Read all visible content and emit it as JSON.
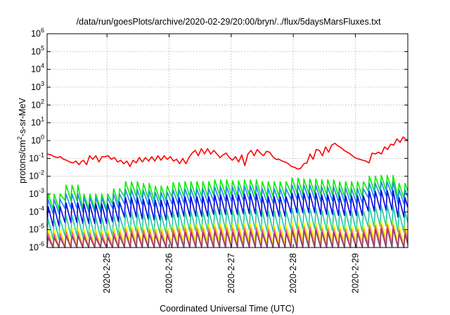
{
  "chart_data": {
    "type": "line",
    "title": "/data/run/goesPlots/archive/2020-02-29/20:00/bryn/../flux/5daysMarsFluxes.txt",
    "xlabel": "Coordinated Universal Time (UTC)",
    "ylabel": {
      "pre": "protons/cm",
      "sup": "2",
      "post": "-s-sr-MeV"
    },
    "yscale": "log",
    "ylim_exp": [
      -6,
      6
    ],
    "y_ticks": [
      {
        "base": "10",
        "exp": "-6",
        "v": -6
      },
      {
        "base": "10",
        "exp": "-5",
        "v": -5
      },
      {
        "base": "10",
        "exp": "-4",
        "v": -4
      },
      {
        "base": "10",
        "exp": "-3",
        "v": -3
      },
      {
        "base": "10",
        "exp": "-2",
        "v": -2
      },
      {
        "base": "10",
        "exp": "-1",
        "v": -1
      },
      {
        "base": "10",
        "exp": "0",
        "v": 0
      },
      {
        "base": "10",
        "exp": "1",
        "v": 1
      },
      {
        "base": "10",
        "exp": "2",
        "v": 2
      },
      {
        "base": "10",
        "exp": "3",
        "v": 3
      },
      {
        "base": "10",
        "exp": "4",
        "v": 4
      },
      {
        "base": "10",
        "exp": "5",
        "v": 5
      },
      {
        "base": "10",
        "exp": "6",
        "v": 6
      }
    ],
    "xlim_days": [
      -0.965,
      4.845
    ],
    "x_ticks": [
      {
        "label": "2020-2-25",
        "day": 0
      },
      {
        "label": "2020-2-26",
        "day": 1
      },
      {
        "label": "2020-2-27",
        "day": 2
      },
      {
        "label": "2020-2-28",
        "day": 3
      },
      {
        "label": "2020-2-29",
        "day": 4
      }
    ],
    "grid": true,
    "series": [
      {
        "color": "#ff0000",
        "sawtooth": false,
        "x_days": [
          -0.96,
          -0.9,
          -0.85,
          -0.8,
          -0.75,
          -0.7,
          -0.65,
          -0.6,
          -0.55,
          -0.5,
          -0.45,
          -0.42,
          -0.38,
          -0.33,
          -0.28,
          -0.23,
          -0.18,
          -0.13,
          -0.08,
          -0.03,
          0.02,
          0.07,
          0.12,
          0.17,
          0.22,
          0.27,
          0.32,
          0.37,
          0.42,
          0.47,
          0.52,
          0.57,
          0.62,
          0.67,
          0.72,
          0.77,
          0.82,
          0.87,
          0.92,
          0.97,
          1.02,
          1.07,
          1.12,
          1.17,
          1.22,
          1.27,
          1.32,
          1.37,
          1.42,
          1.47,
          1.52,
          1.57,
          1.62,
          1.67,
          1.72,
          1.77,
          1.82,
          1.87,
          1.92,
          1.97,
          2.02,
          2.07,
          2.12,
          2.17,
          2.22,
          2.27,
          2.32,
          2.37,
          2.42,
          2.47,
          2.52,
          2.57,
          2.62,
          2.67,
          2.72,
          2.77,
          2.82,
          2.87,
          2.92,
          2.97,
          3.02,
          3.07,
          3.12,
          3.17,
          3.22,
          3.27,
          3.32,
          3.37,
          3.42,
          3.47,
          3.52,
          3.57,
          3.62,
          3.67,
          3.72,
          3.77,
          3.82,
          3.87,
          3.92,
          3.97,
          4.02,
          4.07,
          4.12,
          4.17,
          4.22,
          4.27,
          4.32,
          4.37,
          4.42,
          4.47,
          4.52,
          4.57,
          4.62,
          4.67,
          4.72,
          4.77,
          4.82,
          4.845
        ],
        "y_exp": [
          -0.75,
          -0.8,
          -0.9,
          -0.95,
          -0.9,
          -1.05,
          -1.1,
          -1.2,
          -1.25,
          -1.15,
          -1.35,
          -1.2,
          -1.1,
          -1.35,
          -0.85,
          -1.05,
          -0.85,
          -1.2,
          -0.9,
          -0.9,
          -0.85,
          -1.05,
          -0.95,
          -1.2,
          -1.1,
          -1.3,
          -1.15,
          -1.45,
          -1.1,
          -1.25,
          -0.95,
          -1.2,
          -0.95,
          -1.15,
          -0.9,
          -1.15,
          -0.85,
          -1.1,
          -0.85,
          -1.05,
          -0.9,
          -1.15,
          -1.05,
          -1.3,
          -1.0,
          -1.3,
          -0.95,
          -0.7,
          -0.55,
          -0.85,
          -0.45,
          -0.75,
          -0.45,
          -0.75,
          -0.55,
          -0.75,
          -0.95,
          -0.8,
          -0.7,
          -0.95,
          -1.1,
          -0.9,
          -1.2,
          -0.8,
          -1.4,
          -0.75,
          -0.55,
          -0.85,
          -0.5,
          -0.7,
          -0.85,
          -0.6,
          -0.65,
          -0.9,
          -1.05,
          -1.05,
          -1.15,
          -1.2,
          -1.3,
          -1.45,
          -1.5,
          -1.6,
          -1.55,
          -1.3,
          -1.25,
          -0.75,
          -1.05,
          -0.5,
          -0.55,
          -0.85,
          -0.35,
          -0.65,
          -0.25,
          -0.15,
          -0.3,
          -0.4,
          -0.55,
          -0.65,
          -0.75,
          -0.9,
          -1.0,
          -1.05,
          -1.1,
          -1.15,
          -1.25,
          -0.7,
          -0.75,
          -0.65,
          -0.75,
          -0.35,
          -0.5,
          -0.2,
          -0.25,
          0.1,
          -0.1,
          0.2,
          0.05,
          0.05
        ]
      },
      {
        "color": "#00ee00",
        "sawtooth": true,
        "start_day": -0.965,
        "end_day": 4.845,
        "period": 0.0958,
        "base": [
          -3.0,
          -2.5,
          -3.0,
          -3.0,
          -2.7,
          -2.3,
          -2.4,
          -2.55,
          -2.35,
          -2.3,
          -2.3,
          -2.2,
          -2.25,
          -2.2,
          -2.3,
          -2.3,
          -2.1,
          -2.15,
          -2.2,
          -2.3,
          -2.3,
          -2.0,
          -1.95,
          -2.4
        ],
        "amp": 0.85
      },
      {
        "color": "#2288ff",
        "sawtooth": true,
        "start_day": -0.965,
        "end_day": 4.845,
        "period": 0.0958,
        "base": [
          -3.3,
          -3.0,
          -3.2,
          -3.2,
          -3.0,
          -2.75,
          -2.8,
          -2.9,
          -2.75,
          -2.7,
          -2.7,
          -2.6,
          -2.6,
          -2.55,
          -2.7,
          -2.7,
          -2.5,
          -2.5,
          -2.6,
          -2.65,
          -2.7,
          -2.4,
          -2.3,
          -2.75
        ],
        "amp": 0.8
      },
      {
        "color": "#0000dd",
        "sawtooth": true,
        "start_day": -0.965,
        "end_day": 4.845,
        "period": 0.0958,
        "base": [
          -3.7,
          -3.5,
          -3.55,
          -3.55,
          -3.45,
          -3.2,
          -3.3,
          -3.35,
          -3.2,
          -3.15,
          -3.15,
          -3.05,
          -3.05,
          -3.0,
          -3.15,
          -3.15,
          -2.95,
          -2.95,
          -3.05,
          -3.1,
          -3.1,
          -2.85,
          -2.8,
          -3.2
        ],
        "amp": 1.1
      },
      {
        "color": "#22c8a0",
        "sawtooth": true,
        "start_day": -0.965,
        "end_day": 4.845,
        "period": 0.0958,
        "base": [
          -4.4,
          -4.2,
          -4.25,
          -4.3,
          -4.2,
          -4.0,
          -4.05,
          -4.1,
          -4.0,
          -3.95,
          -3.95,
          -3.85,
          -3.9,
          -3.85,
          -3.95,
          -3.95,
          -3.8,
          -3.8,
          -3.9,
          -3.95,
          -3.95,
          -3.7,
          -3.65,
          -4.0
        ],
        "amp": 1.15
      },
      {
        "color": "#ffff00",
        "sawtooth": true,
        "start_day": -0.965,
        "end_day": 4.845,
        "period": 0.0958,
        "base": [
          -5.0,
          -4.9,
          -4.95,
          -5.0,
          -4.9,
          -4.75,
          -4.8,
          -4.85,
          -4.75,
          -4.7,
          -4.7,
          -4.65,
          -4.7,
          -4.65,
          -4.75,
          -4.75,
          -4.6,
          -4.6,
          -4.7,
          -4.75,
          -4.75,
          -4.55,
          -4.5,
          -4.8
        ],
        "amp": 1.0
      },
      {
        "color": "#ff9900",
        "sawtooth": true,
        "start_day": -0.965,
        "end_day": 4.845,
        "period": 0.0958,
        "base": [
          -5.2,
          -5.1,
          -5.15,
          -5.2,
          -5.1,
          -4.95,
          -5.0,
          -5.05,
          -4.95,
          -4.9,
          -4.9,
          -4.85,
          -4.9,
          -4.85,
          -4.95,
          -4.95,
          -4.8,
          -4.8,
          -4.9,
          -4.95,
          -4.95,
          -4.75,
          -4.7,
          -5.0
        ],
        "amp": 1.05
      },
      {
        "color": "#ff44cc",
        "sawtooth": true,
        "start_day": -0.965,
        "end_day": 4.845,
        "period": 0.0958,
        "base": [
          -5.3,
          -5.2,
          -5.25,
          -5.3,
          -5.2,
          -5.05,
          -5.1,
          -5.15,
          -5.05,
          -5.0,
          -5.0,
          -4.95,
          -5.0,
          -4.95,
          -5.05,
          -5.05,
          -4.9,
          -4.9,
          -5.0,
          -5.05,
          -5.05,
          -4.85,
          -4.8,
          -5.1
        ],
        "amp": 1.1
      },
      {
        "color": "#884466",
        "sawtooth": true,
        "start_day": -0.965,
        "end_day": 4.845,
        "period": 0.0958,
        "base": [
          -5.45,
          -5.35,
          -5.4,
          -5.45,
          -5.35,
          -5.2,
          -5.25,
          -5.3,
          -5.2,
          -5.15,
          -5.15,
          -5.1,
          -5.15,
          -5.1,
          -5.2,
          -5.2,
          -5.05,
          -5.05,
          -5.15,
          -5.2,
          -5.2,
          -5.0,
          -4.95,
          -5.25
        ],
        "amp": 1.15
      }
    ]
  }
}
